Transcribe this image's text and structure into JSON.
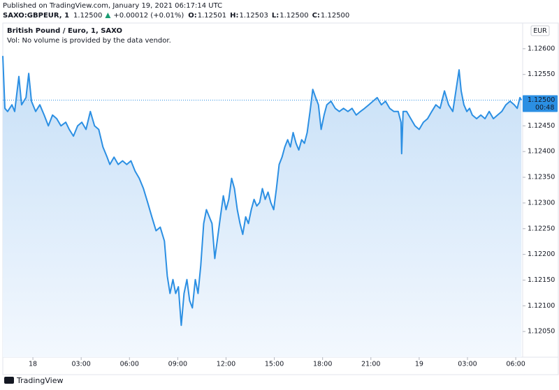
{
  "header": {
    "published": "Published on TradingView.com, January 19, 2021 06:17:14 UTC",
    "symbol": "SAXO:GBPEUR, 1",
    "last": "1.12500",
    "change": "+0.00012 (+0.01%)",
    "ohlc": [
      {
        "label": "O:",
        "value": "1.12501"
      },
      {
        "label": "H:",
        "value": "1.12503"
      },
      {
        "label": "L:",
        "value": "1.12500"
      },
      {
        "label": "C:",
        "value": "1.12500"
      }
    ],
    "logo": "TradingView"
  },
  "chart_data": {
    "type": "area",
    "title": "British Pound / Euro, 1, SAXO",
    "subtitle": "Vol: No volume is provided by the data vendor.",
    "currency": "EUR",
    "color": "#2b8fe3",
    "grid": false,
    "xlim": [
      -1.87,
      30.43
    ],
    "ylim": [
      1.12,
      1.1265
    ],
    "xticks": [
      {
        "value": 0,
        "label": "18"
      },
      {
        "value": 3,
        "label": "03:00"
      },
      {
        "value": 6,
        "label": "06:00"
      },
      {
        "value": 9,
        "label": "09:00"
      },
      {
        "value": 12,
        "label": "12:00"
      },
      {
        "value": 15,
        "label": "15:00"
      },
      {
        "value": 18,
        "label": "18:00"
      },
      {
        "value": 21,
        "label": "21:00"
      },
      {
        "value": 24,
        "label": "19"
      },
      {
        "value": 27,
        "label": "03:00"
      },
      {
        "value": 30,
        "label": "06:00"
      }
    ],
    "yticks": [
      {
        "value": 1.126,
        "label": "1.12600"
      },
      {
        "value": 1.1255,
        "label": "1.12550"
      },
      {
        "value": 1.125,
        "label": "1.12500"
      },
      {
        "value": 1.1245,
        "label": "1.12450"
      },
      {
        "value": 1.124,
        "label": "1.12400"
      },
      {
        "value": 1.1235,
        "label": "1.12350"
      },
      {
        "value": 1.123,
        "label": "1.12300"
      },
      {
        "value": 1.1225,
        "label": "1.12250"
      },
      {
        "value": 1.122,
        "label": "1.12200"
      },
      {
        "value": 1.1215,
        "label": "1.12150"
      },
      {
        "value": 1.121,
        "label": "1.12100"
      },
      {
        "value": 1.1205,
        "label": "1.12050"
      }
    ],
    "price_marker": {
      "value": 1.125,
      "label": "1.12500",
      "time_label": "00:48"
    },
    "x": [
      -1.87,
      -1.74,
      -1.57,
      -1.3,
      -1.13,
      -0.87,
      -0.7,
      -0.43,
      -0.26,
      -0.09,
      0.17,
      0.43,
      0.7,
      0.96,
      1.22,
      1.48,
      1.74,
      2.04,
      2.26,
      2.52,
      2.78,
      3.04,
      3.3,
      3.57,
      3.83,
      4.09,
      4.35,
      4.61,
      4.78,
      5.04,
      5.3,
      5.57,
      5.83,
      6.09,
      6.35,
      6.61,
      6.87,
      7.13,
      7.39,
      7.65,
      7.91,
      8.17,
      8.35,
      8.52,
      8.7,
      8.87,
      9.04,
      9.22,
      9.39,
      9.57,
      9.74,
      9.91,
      10.09,
      10.26,
      10.43,
      10.61,
      10.78,
      10.96,
      11.13,
      11.3,
      11.48,
      11.65,
      11.83,
      12.0,
      12.17,
      12.35,
      12.52,
      12.7,
      12.87,
      13.04,
      13.22,
      13.39,
      13.57,
      13.74,
      13.91,
      14.09,
      14.26,
      14.43,
      14.61,
      14.78,
      14.96,
      15.13,
      15.3,
      15.48,
      15.65,
      15.83,
      16.0,
      16.17,
      16.35,
      16.52,
      16.7,
      16.87,
      17.04,
      17.22,
      17.39,
      17.57,
      17.74,
      17.91,
      18.09,
      18.26,
      18.52,
      18.78,
      19.04,
      19.3,
      19.57,
      19.83,
      20.09,
      20.35,
      20.61,
      20.87,
      21.13,
      21.39,
      21.65,
      21.91,
      22.17,
      22.43,
      22.7,
      22.87,
      22.91,
      23.0,
      23.22,
      23.48,
      23.74,
      24.0,
      24.26,
      24.52,
      24.78,
      25.04,
      25.3,
      25.57,
      25.83,
      26.09,
      26.35,
      26.48,
      26.61,
      26.78,
      26.96,
      27.13,
      27.3,
      27.57,
      27.83,
      28.09,
      28.35,
      28.61,
      28.87,
      29.13,
      29.39,
      29.65,
      29.91,
      30.09,
      30.26,
      30.35
    ],
    "values": [
      1.12586,
      1.12484,
      1.12478,
      1.12491,
      1.12478,
      1.12546,
      1.12491,
      1.12505,
      1.12552,
      1.12498,
      1.12478,
      1.12491,
      1.12471,
      1.1245,
      1.12471,
      1.12464,
      1.1245,
      1.12457,
      1.12443,
      1.1243,
      1.1245,
      1.12457,
      1.12443,
      1.12478,
      1.1245,
      1.12443,
      1.12409,
      1.12389,
      1.12375,
      1.12389,
      1.12375,
      1.12382,
      1.12375,
      1.12382,
      1.12362,
      1.12348,
      1.12328,
      1.12301,
      1.12273,
      1.12246,
      1.12253,
      1.12226,
      1.12158,
      1.12124,
      1.12151,
      1.12124,
      1.12137,
      1.12062,
      1.12124,
      1.12151,
      1.1211,
      1.12096,
      1.12151,
      1.12124,
      1.12178,
      1.1226,
      1.12287,
      1.12273,
      1.1226,
      1.12192,
      1.12233,
      1.12273,
      1.12314,
      1.12287,
      1.12307,
      1.12348,
      1.12328,
      1.12287,
      1.1226,
      1.12239,
      1.12273,
      1.1226,
      1.12287,
      1.12307,
      1.12294,
      1.12301,
      1.12328,
      1.12307,
      1.12321,
      1.12301,
      1.12287,
      1.12328,
      1.12375,
      1.12389,
      1.12409,
      1.12423,
      1.12409,
      1.12437,
      1.12416,
      1.12403,
      1.12423,
      1.12416,
      1.12437,
      1.12478,
      1.12521,
      1.12505,
      1.12491,
      1.12443,
      1.12471,
      1.12491,
      1.12498,
      1.12484,
      1.12478,
      1.12484,
      1.12478,
      1.12484,
      1.12471,
      1.12478,
      1.12484,
      1.12491,
      1.12498,
      1.12505,
      1.12491,
      1.12498,
      1.12484,
      1.12478,
      1.12478,
      1.12457,
      1.12396,
      1.12478,
      1.12478,
      1.12464,
      1.1245,
      1.12443,
      1.12457,
      1.12464,
      1.12478,
      1.12491,
      1.12484,
      1.12518,
      1.12491,
      1.12478,
      1.12532,
      1.12559,
      1.12518,
      1.12491,
      1.12478,
      1.12484,
      1.12471,
      1.12464,
      1.12471,
      1.12464,
      1.12478,
      1.12464,
      1.12471,
      1.12478,
      1.12491,
      1.12498,
      1.12491,
      1.12484,
      1.12505,
      1.125
    ]
  }
}
